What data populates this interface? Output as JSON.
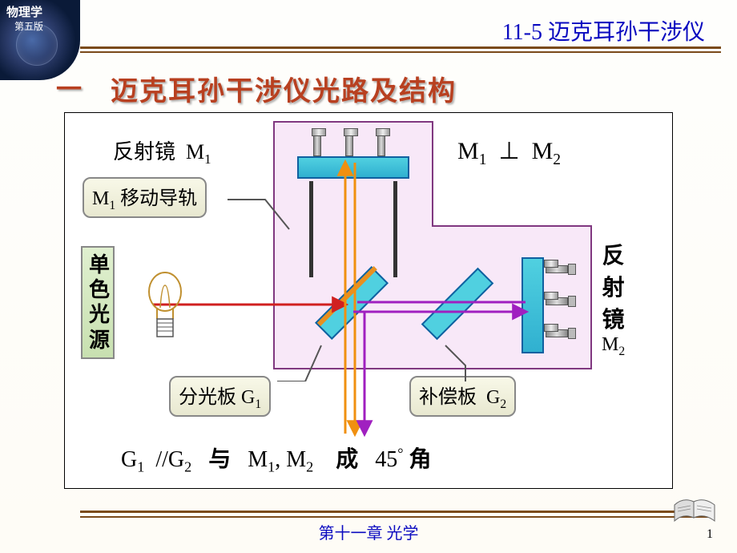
{
  "header": {
    "textbook": "物理学",
    "edition": "第五版",
    "chapter_section": "11-5  迈克耳孙干涉仪"
  },
  "section": {
    "marker": "一",
    "title": "迈克耳孙干涉仪光路及结构"
  },
  "labels": {
    "m1_mirror": "反射镜",
    "m1_symbol": "M",
    "m1_sub": "1",
    "m1_rail": "移动导轨",
    "m2_mirror_v": "反射镜",
    "m2_symbol": "M",
    "m2_sub": "2",
    "source": "单色光源",
    "splitter": "分光板",
    "g1_symbol": "G",
    "g1_sub": "1",
    "compensator": "补偿板",
    "g2_symbol": "G",
    "g2_sub": "2"
  },
  "equations": {
    "perpendicular": {
      "left": "M",
      "lsub": "1",
      "op": "⊥",
      "right": "M",
      "rsub": "2"
    },
    "parallel_text": {
      "g1": "G",
      "g1s": "1",
      "g2": "G",
      "g2s": "2",
      "与": "与",
      "m1": "M",
      "m1s": "1",
      "m2": "M",
      "m2s": "2",
      "成": "成",
      "角度": "45",
      "角": "角"
    }
  },
  "footer": {
    "chapter": "第十一章  光学",
    "page": "1"
  },
  "colors": {
    "title_blue": "#0a0ac0",
    "brand_red": "#b84020",
    "frame_border": "#000000",
    "pink_fill": "#f8e8f8",
    "pink_border": "#803880",
    "mirror_fill": "#50d0e0",
    "mirror_stroke": "#1060a0",
    "ray_red": "#d02020",
    "ray_orange": "#f09010",
    "ray_purple": "#a020c0",
    "rule_brown": "#7a4a1a"
  },
  "diagram": {
    "type": "physics-schematic",
    "rays": [
      {
        "color": "#d02020",
        "points": [
          [
            110,
            239
          ],
          [
            350,
            239
          ]
        ],
        "arrow": true,
        "width": 3
      },
      {
        "color": "#f09010",
        "points": [
          [
            350,
            239
          ],
          [
            350,
            62
          ]
        ],
        "arrow": true,
        "width": 3
      },
      {
        "color": "#f09010",
        "points": [
          [
            362,
            62
          ],
          [
            362,
            239
          ]
        ],
        "arrow": false,
        "width": 3
      },
      {
        "color": "#f09010",
        "points": [
          [
            362,
            239
          ],
          [
            362,
            400
          ]
        ],
        "arrow": true,
        "width": 3
      },
      {
        "color": "#f09010",
        "points": [
          [
            350,
            239
          ],
          [
            350,
            400
          ]
        ],
        "arrow": false,
        "width": 3
      },
      {
        "color": "#a020c0",
        "points": [
          [
            360,
            248
          ],
          [
            575,
            248
          ]
        ],
        "arrow": true,
        "width": 3
      },
      {
        "color": "#a020c0",
        "points": [
          [
            575,
            236
          ],
          [
            365,
            236
          ]
        ],
        "arrow": false,
        "width": 3
      },
      {
        "color": "#a020c0",
        "points": [
          [
            374,
            248
          ],
          [
            374,
            400
          ]
        ],
        "arrow": true,
        "width": 3
      }
    ]
  }
}
